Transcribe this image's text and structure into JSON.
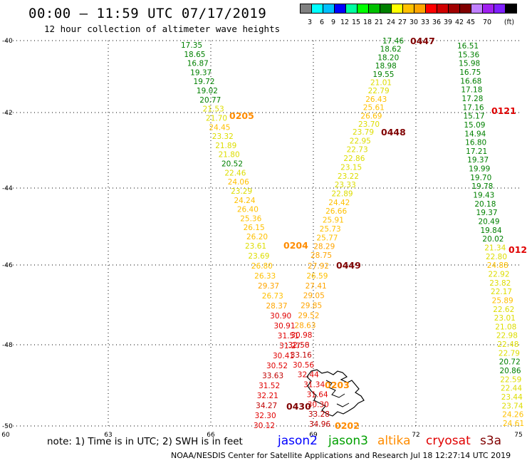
{
  "header": {
    "title": "00:00 – 11:59 UTC 07/17/2019",
    "subtitle": "12 hour collection of altimeter wave heights"
  },
  "legend_scale": {
    "unit": "(ft)",
    "colors": [
      "#808080",
      "#00ffff",
      "#00bfff",
      "#0000ff",
      "#00ffa0",
      "#00ff00",
      "#00c000",
      "#008000",
      "#ffff00",
      "#ffc000",
      "#ffa500",
      "#ff0000",
      "#d00000",
      "#a00000",
      "#800000",
      "#c080ff",
      "#a020f0",
      "#8020ff",
      "#000000"
    ],
    "labels": [
      "3",
      "6",
      "9",
      "12",
      "15",
      "18",
      "21",
      "24",
      "27",
      "30",
      "33",
      "36",
      "39",
      "42",
      "45",
      "70"
    ]
  },
  "axes": {
    "x_ticks": [
      "60",
      "63",
      "66",
      "69",
      "72",
      "75"
    ],
    "y_ticks": [
      "-40",
      "-42",
      "-44",
      "-46",
      "-48",
      "-50"
    ]
  },
  "tracks": [
    {
      "name": "track-0205",
      "time": "0205",
      "time_color": "#ff8c00",
      "values": [
        "17.35",
        "18.65",
        "16.87",
        "19.37",
        "19.72",
        "19.02",
        "20.77",
        "21.53",
        "21.70",
        "24.45",
        "23.32",
        "21.89",
        "21.80",
        "20.52",
        "22.46",
        "24.06",
        "23.29",
        "24.24",
        "26.40",
        "25.36",
        "26.15",
        "26.20"
      ]
    },
    {
      "name": "track-0204",
      "time": "0204",
      "time_color": "#ff8c00",
      "values": [
        "23.61",
        "23.69",
        "26.80",
        "26.33",
        "29.37",
        "26.73",
        "28.37",
        "30.90",
        "30.91",
        "31.51",
        "31.27",
        "30.41",
        "30.52",
        "33.63",
        "31.52",
        "32.21",
        "34.27",
        "32.30",
        "30.12"
      ]
    },
    {
      "name": "track-0447",
      "time": "0447",
      "time_color": "#800000",
      "values": [
        "17.46",
        "18.62",
        "18.20",
        "18.98",
        "19.55",
        "21.01",
        "22.79",
        "26.43",
        "25.61",
        "26.69",
        "23.70"
      ]
    },
    {
      "name": "track-0448",
      "time": "0448",
      "time_color": "#800000",
      "values": [
        "23.79",
        "22.95",
        "22.73",
        "22.86",
        "23.15",
        "23.22",
        "23.33",
        "22.89",
        "24.42",
        "26.66",
        "25.91",
        "25.73",
        "25.77",
        "28.29",
        "28.75"
      ]
    },
    {
      "name": "track-0449",
      "time": "0449",
      "time_color": "#800000",
      "values": [
        "27.92",
        "26.59",
        "27.41",
        "29.05",
        "29.85",
        "29.52",
        "28.63",
        "30.98",
        "32.58",
        "33.16",
        "30.56",
        "32.44",
        "31.34",
        "31.64",
        "30.30",
        "33.28",
        "34.96"
      ]
    },
    {
      "name": "track-0121",
      "time": "0121",
      "time_color": "#e00000",
      "values": [
        "16.51",
        "15.36",
        "15.98",
        "16.75",
        "16.68",
        "17.18",
        "17.28",
        "17.16",
        "15.17",
        "15.09",
        "14.94",
        "16.80",
        "17.21",
        "19.37",
        "19.99",
        "19.70",
        "19.78",
        "19.43",
        "20.18",
        "19.37",
        "20.49",
        "19.84",
        "20.02",
        "21.34",
        "22.80",
        "24.88",
        "22.92",
        "23.82",
        "22.17",
        "25.89",
        "22.62",
        "23.01",
        "21.08",
        "22.98",
        "22.48",
        "22.79",
        "20.72",
        "20.86",
        "22.59",
        "22.44",
        "23.44",
        "23.74",
        "24.26",
        "24.61"
      ]
    }
  ],
  "extra_labels": [
    "0430",
    "0202",
    "0203",
    "012"
  ],
  "footer": {
    "note": "note:  1) Time is in UTC;  2) SWH is in feet",
    "satellites": [
      {
        "label": "jason2",
        "color": "#0000ff"
      },
      {
        "label": "jason3",
        "color": "#00a000"
      },
      {
        "label": "altika",
        "color": "#ff8c00"
      },
      {
        "label": "cryosat",
        "color": "#e00000"
      },
      {
        "label": "s3a",
        "color": "#800000"
      }
    ],
    "credit": "NOAA/NESDIS Center for Satellite Applications and Research   Jul 18 12:27:14 UTC 2019"
  }
}
